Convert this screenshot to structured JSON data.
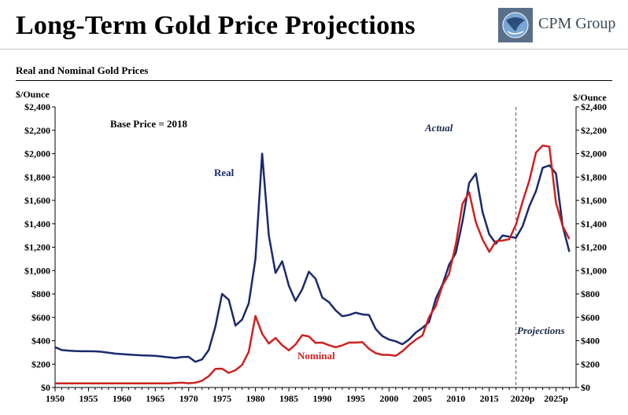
{
  "header": {
    "title": "Long-Term Gold Price Projections",
    "logo_text": "CPM Group"
  },
  "subtitle": "Real and Nominal Gold Prices",
  "chart_data": {
    "type": "line",
    "title": "Real and Nominal Gold Prices",
    "ylabel": "$/Ounce",
    "ylabel_right": "$/Ounce",
    "xlabel": "",
    "ylim": [
      0,
      2400
    ],
    "xlim": [
      1950,
      2028
    ],
    "y_ticks": [
      "$0",
      "$200",
      "$400",
      "$600",
      "$800",
      "$1,000",
      "$1,200",
      "$1,400",
      "$1,600",
      "$1,800",
      "$2,000",
      "$2,200",
      "$2,400"
    ],
    "y_tick_values": [
      0,
      200,
      400,
      600,
      800,
      1000,
      1200,
      1400,
      1600,
      1800,
      2000,
      2200,
      2400
    ],
    "x_ticks": [
      "1950",
      "1955",
      "1960",
      "1965",
      "1970",
      "1975",
      "1980",
      "1985",
      "1990",
      "1995",
      "2000",
      "2005",
      "2010",
      "2015",
      "2020p",
      "2025p"
    ],
    "x_tick_values": [
      1950,
      1955,
      1960,
      1965,
      1970,
      1975,
      1980,
      1985,
      1990,
      1995,
      2000,
      2005,
      2010,
      2015,
      2020,
      2025
    ],
    "grid": false,
    "divider_year": 2019,
    "annotations": {
      "base_price": "Base Price = 2018",
      "actual": "Actual",
      "projections": "Projections"
    },
    "series": [
      {
        "name": "Real",
        "color": "#1a2a6c",
        "x": [
          1950,
          1951,
          1952,
          1953,
          1954,
          1955,
          1956,
          1957,
          1958,
          1959,
          1960,
          1961,
          1962,
          1963,
          1964,
          1965,
          1966,
          1967,
          1968,
          1969,
          1970,
          1971,
          1972,
          1973,
          1974,
          1975,
          1976,
          1977,
          1978,
          1979,
          1980,
          1981,
          1982,
          1983,
          1984,
          1985,
          1986,
          1987,
          1988,
          1989,
          1990,
          1991,
          1992,
          1993,
          1994,
          1995,
          1996,
          1997,
          1998,
          1999,
          2000,
          2001,
          2002,
          2003,
          2004,
          2005,
          2006,
          2007,
          2008,
          2009,
          2010,
          2011,
          2012,
          2013,
          2014,
          2015,
          2016,
          2017,
          2018,
          2019,
          2020,
          2021,
          2022,
          2023,
          2024,
          2025,
          2026,
          2027
        ],
        "values": [
          345,
          320,
          315,
          312,
          310,
          310,
          309,
          305,
          298,
          290,
          286,
          282,
          278,
          275,
          273,
          270,
          265,
          258,
          252,
          260,
          262,
          220,
          240,
          320,
          520,
          800,
          750,
          530,
          580,
          720,
          1100,
          2000,
          1300,
          980,
          1080,
          870,
          740,
          840,
          990,
          930,
          770,
          730,
          660,
          610,
          620,
          640,
          625,
          620,
          500,
          440,
          410,
          395,
          370,
          410,
          470,
          510,
          560,
          760,
          880,
          1050,
          1150,
          1420,
          1750,
          1830,
          1500,
          1310,
          1230,
          1300,
          1290,
          1280,
          1380,
          1550,
          1680,
          1880,
          1900,
          1830,
          1380,
          1160
        ]
      },
      {
        "name": "Nominal",
        "color": "#cc2222",
        "x": [
          1950,
          1951,
          1952,
          1953,
          1954,
          1955,
          1956,
          1957,
          1958,
          1959,
          1960,
          1961,
          1962,
          1963,
          1964,
          1965,
          1966,
          1967,
          1968,
          1969,
          1970,
          1971,
          1972,
          1973,
          1974,
          1975,
          1976,
          1977,
          1978,
          1979,
          1980,
          1981,
          1982,
          1983,
          1984,
          1985,
          1986,
          1987,
          1988,
          1989,
          1990,
          1991,
          1992,
          1993,
          1994,
          1995,
          1996,
          1997,
          1998,
          1999,
          2000,
          2001,
          2002,
          2003,
          2004,
          2005,
          2006,
          2007,
          2008,
          2009,
          2010,
          2011,
          2012,
          2013,
          2014,
          2015,
          2016,
          2017,
          2018,
          2019,
          2020,
          2021,
          2022,
          2023,
          2024,
          2025,
          2026,
          2027
        ],
        "values": [
          35,
          35,
          35,
          35,
          35,
          35,
          35,
          35,
          35,
          35,
          35,
          35,
          35,
          35,
          35,
          35,
          35,
          35,
          39,
          41,
          36,
          41,
          58,
          97,
          159,
          161,
          125,
          148,
          193,
          306,
          612,
          460,
          376,
          424,
          361,
          317,
          368,
          447,
          437,
          381,
          384,
          362,
          344,
          360,
          384,
          384,
          388,
          331,
          294,
          279,
          279,
          271,
          310,
          363,
          409,
          445,
          604,
          697,
          872,
          972,
          1225,
          1572,
          1669,
          1411,
          1266,
          1160,
          1251,
          1257,
          1268,
          1393,
          1590,
          1770,
          2010,
          2070,
          2060,
          1580,
          1380,
          1270
        ]
      }
    ]
  }
}
